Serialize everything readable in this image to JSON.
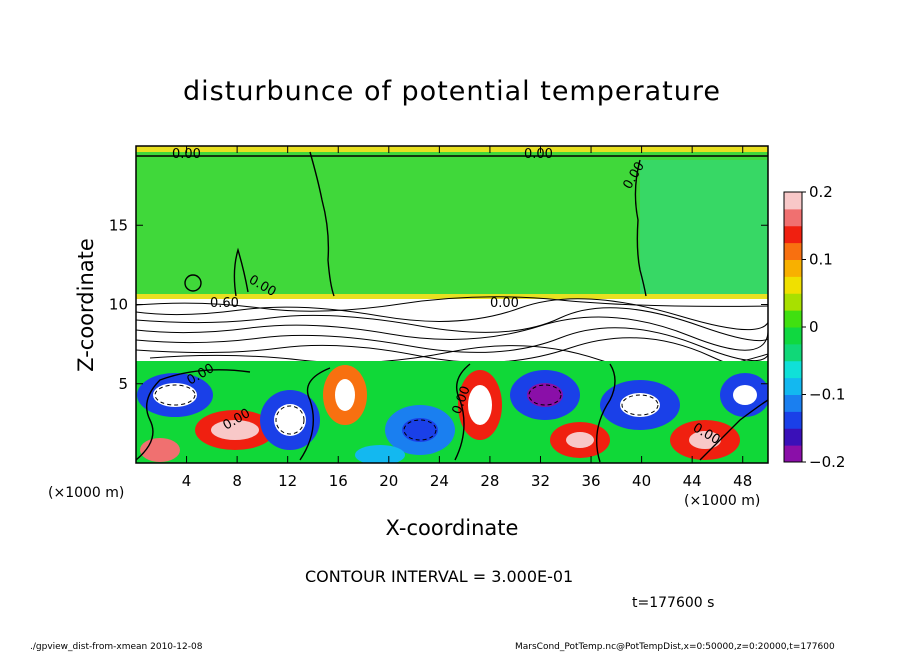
{
  "chart_data": {
    "type": "heatmap",
    "title": "disturbunce of potential temperature",
    "xlabel": "X-coordinate",
    "ylabel": "Z-coordinate",
    "x_unit": "(×1000 m)",
    "y_unit": "(×1000 m)",
    "xlim": [
      0,
      50
    ],
    "ylim": [
      0,
      20
    ],
    "x_ticks": [
      4,
      8,
      12,
      16,
      20,
      24,
      28,
      32,
      36,
      40,
      44,
      48
    ],
    "y_ticks": [
      5,
      10,
      15
    ],
    "colorbar": {
      "range": [
        -0.2,
        0.2
      ],
      "ticks": [
        "0.2",
        "0.1",
        "0",
        "−0.1",
        "−0.2"
      ],
      "colors": [
        "#8a0fa8",
        "#3a10b8",
        "#1a40e8",
        "#1a7ff0",
        "#13b8f0",
        "#10e0d8",
        "#10d878",
        "#10d840",
        "#40e010",
        "#a8e000",
        "#f0e000",
        "#f8b000",
        "#f87010",
        "#f02010",
        "#f07070",
        "#f8c8c8"
      ]
    },
    "contour_labels": [
      "0.00",
      "0.00",
      "0.00",
      "0.60",
      "0.00",
      "0.00",
      "0.00",
      "0.00",
      "0.00",
      "0.00"
    ],
    "contour_interval": "CONTOUR INTERVAL = 3.000E-01",
    "time": "t=177600 s"
  },
  "footer": {
    "left": "./gpview_dist-from-xmean  2010-12-08",
    "right": "MarsCond_PotTemp.nc@PotTempDist,x=0:50000,z=0:20000,t=177600"
  }
}
